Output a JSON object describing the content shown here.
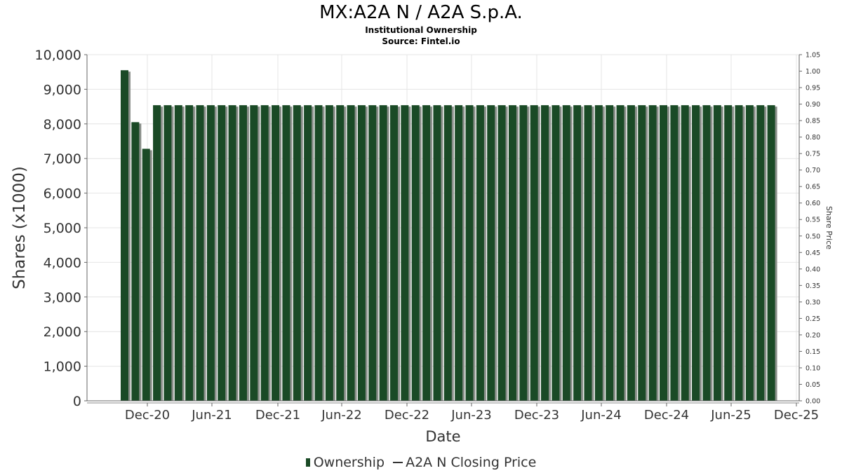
{
  "header": {
    "title": "MX:A2A N / A2A S.p.A.",
    "subtitle": "Institutional Ownership",
    "source": "Source: Fintel.io"
  },
  "legend": {
    "ownership": "Ownership",
    "price": "A2A N Closing Price"
  },
  "colors": {
    "bar": "#1a4a26",
    "bar_shadow": "#8a8f8a",
    "grid": "#e4e4e4",
    "axis_text": "#333333"
  },
  "chart_data": {
    "type": "bar",
    "title": "MX:A2A N / A2A S.p.A.",
    "subtitle": "Institutional Ownership",
    "xlabel": "Date",
    "ylabel": "Shares (x1000)",
    "y2label": "Share Price",
    "ylim": [
      0,
      10000
    ],
    "y2lim": [
      0,
      1.05
    ],
    "yticks": [
      "0",
      "1,000",
      "2,000",
      "3,000",
      "4,000",
      "5,000",
      "6,000",
      "7,000",
      "8,000",
      "9,000",
      "10,000"
    ],
    "y2ticks": [
      "0.00",
      "0.05",
      "0.10",
      "0.15",
      "0.20",
      "0.25",
      "0.30",
      "0.35",
      "0.40",
      "0.45",
      "0.50",
      "0.55",
      "0.60",
      "0.65",
      "0.70",
      "0.75",
      "0.80",
      "0.85",
      "0.90",
      "0.95",
      "1.00",
      "1.05"
    ],
    "xticks": [
      "Dec-20",
      "Jun-21",
      "Dec-21",
      "Jun-22",
      "Dec-22",
      "Jun-23",
      "Dec-23",
      "Jun-24",
      "Dec-24",
      "Jun-25",
      "Dec-25"
    ],
    "grid": true,
    "legend_position": "bottom",
    "series": [
      {
        "name": "Ownership",
        "values": [
          9550,
          8050,
          7280,
          8540,
          8540,
          8540,
          8540,
          8540,
          8540,
          8540,
          8540,
          8540,
          8540,
          8540,
          8540,
          8540,
          8540,
          8540,
          8540,
          8540,
          8540,
          8540,
          8540,
          8540,
          8540,
          8540,
          8540,
          8540,
          8540,
          8540,
          8540,
          8540,
          8540,
          8540,
          8540,
          8540,
          8540,
          8540,
          8540,
          8540,
          8540,
          8540,
          8540,
          8540,
          8540,
          8540,
          8540,
          8540,
          8540,
          8540,
          8540,
          8540,
          8540,
          8540,
          8540,
          8540,
          8540,
          8540,
          8540,
          8540,
          8540
        ]
      },
      {
        "name": "A2A N Closing Price",
        "values": []
      }
    ]
  }
}
